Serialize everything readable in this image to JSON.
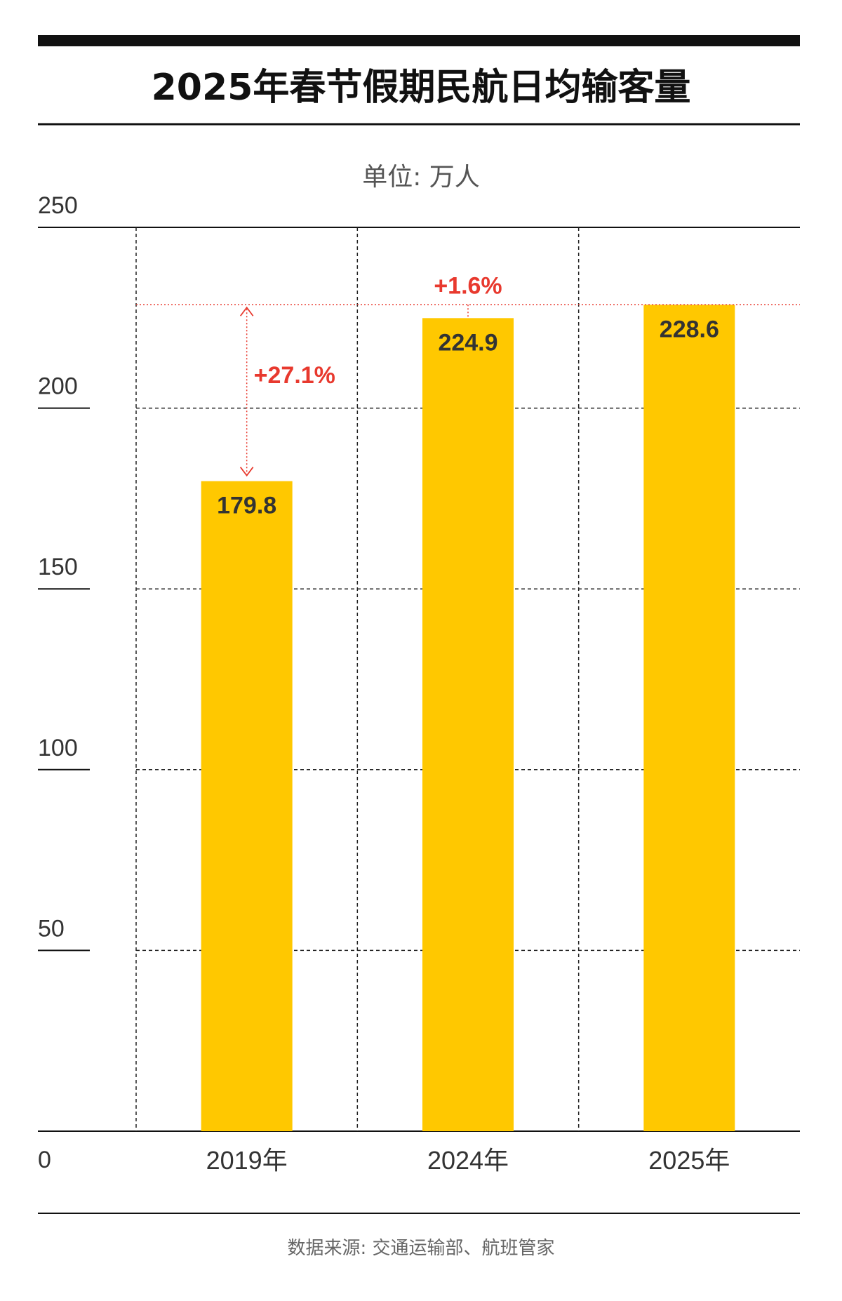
{
  "title": "2025年春节假期民航日均输客量",
  "unit_label": "单位: 万人",
  "source": "数据来源: 交通运输部、航班管家",
  "colors": {
    "bar": "#FFC800",
    "accent": "#E8392E",
    "text": "#333333",
    "muted": "#555555",
    "rule": "#111111"
  },
  "chart_data": {
    "type": "bar",
    "categories": [
      "2019年",
      "2024年",
      "2025年"
    ],
    "values": [
      179.8,
      224.9,
      228.6
    ],
    "value_labels": [
      "179.8",
      "224.9",
      "228.6"
    ],
    "ylim": [
      0,
      250
    ],
    "yticks": [
      0,
      50,
      100,
      150,
      200,
      250
    ],
    "grid": true,
    "annotations": [
      {
        "text": "+27.1%",
        "from": "2019年",
        "to": "2025年"
      },
      {
        "text": "+1.6%",
        "from": "2024年",
        "to": "2025年"
      }
    ]
  }
}
